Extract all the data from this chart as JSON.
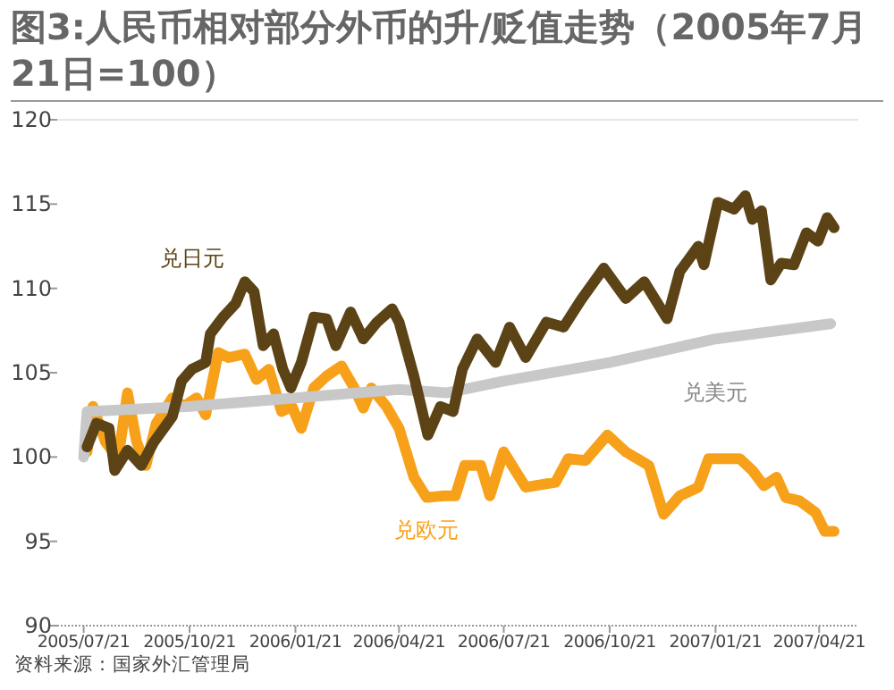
{
  "chart_data": {
    "type": "line",
    "title": "图3:人民币相对部分外币的升/贬值走势（2005年7月21日=100）",
    "annotations": [
      "资料来源：国家外汇管理局"
    ],
    "xlim": [
      "2005-06-28",
      "2007-05-25"
    ],
    "ylim": [
      90,
      120
    ],
    "yticks": [
      90,
      95,
      100,
      105,
      110,
      115,
      120
    ],
    "xticks": [
      {
        "value": "2005-07-21",
        "label": "2005/07/21"
      },
      {
        "value": "2005-10-21",
        "label": "2005/10/21"
      },
      {
        "value": "2006-01-21",
        "label": "2006/01/21"
      },
      {
        "value": "2006-04-21",
        "label": "2006/04/21"
      },
      {
        "value": "2006-07-21",
        "label": "2006/07/21"
      },
      {
        "value": "2006-10-21",
        "label": "2006/10/21"
      },
      {
        "value": "2007-01-21",
        "label": "2007/01/21"
      },
      {
        "value": "2007-04-21",
        "label": "2007/04/21"
      }
    ],
    "grid": false,
    "legend": false,
    "series": [
      {
        "name": "兑欧元",
        "color": "#f7a11a",
        "x": [
          "2005-07-24",
          "2005-07-29",
          "2005-08-09",
          "2005-08-20",
          "2005-08-28",
          "2005-09-05",
          "2005-09-13",
          "2005-09-22",
          "2005-10-06",
          "2005-10-16",
          "2005-10-27",
          "2005-11-04",
          "2005-11-15",
          "2005-11-24",
          "2005-12-08",
          "2005-12-18",
          "2005-12-29",
          "2006-01-09",
          "2006-01-18",
          "2006-01-26",
          "2006-02-06",
          "2006-02-17",
          "2006-03-02",
          "2006-03-13",
          "2006-03-21",
          "2006-03-28",
          "2006-04-10",
          "2006-04-21",
          "2006-05-04",
          "2006-05-15",
          "2006-05-30",
          "2006-06-09",
          "2006-06-17",
          "2006-07-01",
          "2006-07-09",
          "2006-07-21",
          "2006-08-09",
          "2006-09-04",
          "2006-09-15",
          "2006-09-30",
          "2006-10-19",
          "2006-11-04",
          "2006-11-24",
          "2006-12-07",
          "2006-12-21",
          "2007-01-06",
          "2007-01-15",
          "2007-02-11",
          "2007-02-22",
          "2007-03-04",
          "2007-03-15",
          "2007-03-23",
          "2007-04-04",
          "2007-04-18",
          "2007-04-26",
          "2007-05-04"
        ],
        "values": [
          100.3,
          103.0,
          100.9,
          99.9,
          103.8,
          100.9,
          99.5,
          102.0,
          103.5,
          103.0,
          103.5,
          102.5,
          106.2,
          105.9,
          106.1,
          104.6,
          105.2,
          102.7,
          103.0,
          101.7,
          104.1,
          104.8,
          105.4,
          104.1,
          102.9,
          104.1,
          103.0,
          101.7,
          98.8,
          97.6,
          97.7,
          97.7,
          99.5,
          99.5,
          97.7,
          100.3,
          98.2,
          98.5,
          99.9,
          99.8,
          101.3,
          100.3,
          99.5,
          96.6,
          97.7,
          98.2,
          99.9,
          99.9,
          99.2,
          98.3,
          98.8,
          97.6,
          97.4,
          96.7,
          95.6,
          95.6
        ]
      },
      {
        "name": "兑美元",
        "color": "#c8c8c8",
        "x": [
          "2005-07-21",
          "2005-07-24",
          "2005-10-21",
          "2006-01-21",
          "2006-04-21",
          "2006-06-01",
          "2006-07-21",
          "2006-10-21",
          "2007-01-21",
          "2007-05-01"
        ],
        "values": [
          100.0,
          102.7,
          103.0,
          103.5,
          104.0,
          103.8,
          104.5,
          105.6,
          107.0,
          107.9
        ]
      },
      {
        "name": "兑日元",
        "color": "#5c4315",
        "x": [
          "2005-07-24",
          "2005-08-01",
          "2005-08-12",
          "2005-08-17",
          "2005-08-28",
          "2005-09-09",
          "2005-09-20",
          "2005-10-06",
          "2005-10-14",
          "2005-10-23",
          "2005-11-04",
          "2005-11-08",
          "2005-11-19",
          "2005-11-30",
          "2005-12-08",
          "2005-12-16",
          "2005-12-24",
          "2006-01-02",
          "2006-01-10",
          "2006-01-17",
          "2006-01-26",
          "2006-02-06",
          "2006-02-17",
          "2006-02-25",
          "2006-03-10",
          "2006-03-21",
          "2006-04-02",
          "2006-04-15",
          "2006-04-21",
          "2006-05-04",
          "2006-05-16",
          "2006-05-27",
          "2006-06-07",
          "2006-06-15",
          "2006-06-28",
          "2006-07-14",
          "2006-07-26",
          "2006-08-09",
          "2006-08-27",
          "2006-09-11",
          "2006-09-26",
          "2006-10-16",
          "2006-11-04",
          "2006-11-20",
          "2006-12-10",
          "2006-12-21",
          "2007-01-06",
          "2007-01-11",
          "2007-01-23",
          "2007-02-06",
          "2007-02-16",
          "2007-02-22",
          "2007-03-02",
          "2007-03-10",
          "2007-03-19",
          "2007-03-30",
          "2007-04-10",
          "2007-04-20",
          "2007-04-28",
          "2007-05-04"
        ],
        "values": [
          100.6,
          102.0,
          101.7,
          99.2,
          100.4,
          99.5,
          100.9,
          102.4,
          104.5,
          105.2,
          105.6,
          107.3,
          108.3,
          109.1,
          110.4,
          109.8,
          106.6,
          107.3,
          105.2,
          104.1,
          105.6,
          108.3,
          108.2,
          106.6,
          108.6,
          107.0,
          108.0,
          108.8,
          108.0,
          104.8,
          101.3,
          103.0,
          102.7,
          105.2,
          107.0,
          105.6,
          107.7,
          105.9,
          108.0,
          107.7,
          109.3,
          111.2,
          109.4,
          110.4,
          108.2,
          111.0,
          112.5,
          111.4,
          115.1,
          114.7,
          115.5,
          114.1,
          114.6,
          110.5,
          111.5,
          111.4,
          113.3,
          112.8,
          114.2,
          113.6
        ]
      }
    ]
  }
}
